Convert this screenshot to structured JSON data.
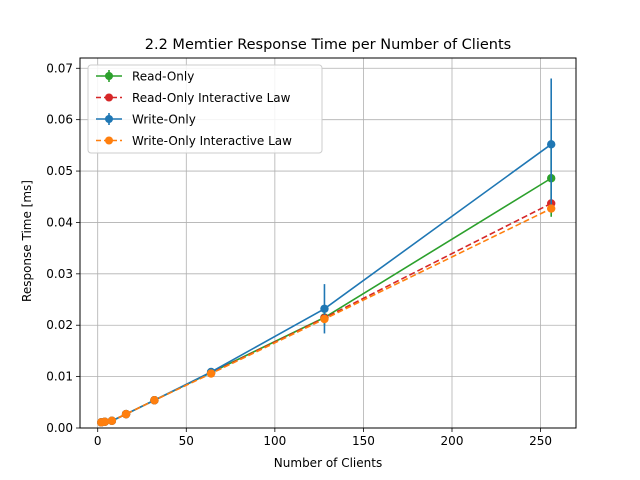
{
  "chart_data": {
    "type": "line",
    "title": "2.2 Memtier Response Time per Number of Clients",
    "xlabel": "Number of Clients",
    "ylabel": "Response Time [ms]",
    "xlim": [
      -10,
      270
    ],
    "ylim": [
      0,
      0.072
    ],
    "xticks": [
      0,
      50,
      100,
      150,
      200,
      250
    ],
    "yticks": [
      0.0,
      0.01,
      0.02,
      0.03,
      0.04,
      0.05,
      0.06,
      0.07
    ],
    "ytick_labels": [
      "0.00",
      "0.01",
      "0.02",
      "0.03",
      "0.04",
      "0.05",
      "0.06",
      "0.07"
    ],
    "grid": true,
    "legend_position": "top-left",
    "x": [
      2,
      4,
      8,
      16,
      32,
      64,
      128,
      256
    ],
    "series": [
      {
        "name": "Read-Only",
        "color": "#2ca02c",
        "dashed": false,
        "errorbars": true,
        "values": [
          0.0011,
          0.0012,
          0.0014,
          0.0027,
          0.0054,
          0.0108,
          0.0215,
          0.0486
        ],
        "errors": [
          0.0002,
          0.0002,
          0.0002,
          0.0003,
          0.0005,
          0.0006,
          0.0015,
          0.0075
        ]
      },
      {
        "name": "Read-Only Interactive Law",
        "color": "#d62728",
        "dashed": true,
        "errorbars": false,
        "values": [
          0.0011,
          0.0012,
          0.0014,
          0.0027,
          0.0054,
          0.0107,
          0.0214,
          0.0437
        ],
        "errors": []
      },
      {
        "name": "Write-Only",
        "color": "#1f77b4",
        "dashed": false,
        "errorbars": true,
        "values": [
          0.0011,
          0.0012,
          0.0014,
          0.0027,
          0.0054,
          0.0109,
          0.0232,
          0.0552
        ],
        "errors": [
          0.0002,
          0.0002,
          0.0002,
          0.0003,
          0.0005,
          0.0007,
          0.0048,
          0.0128
        ]
      },
      {
        "name": "Write-Only Interactive Law",
        "color": "#ff7f0e",
        "dashed": true,
        "errorbars": false,
        "values": [
          0.0011,
          0.0012,
          0.0014,
          0.0027,
          0.0054,
          0.0106,
          0.0212,
          0.0427
        ],
        "errors": []
      }
    ]
  }
}
